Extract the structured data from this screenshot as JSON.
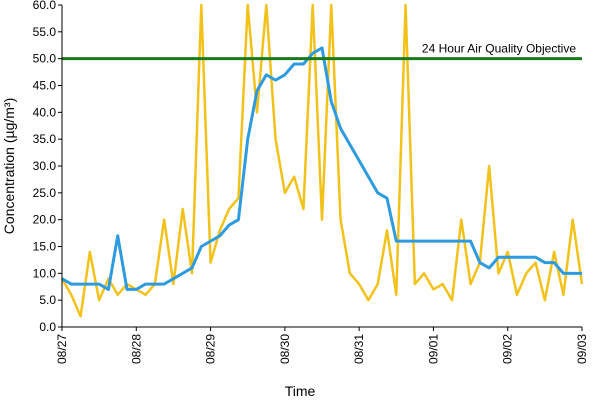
{
  "chart_data": {
    "type": "line",
    "y_label": "Concentration (µg/m³)",
    "x_label": "Time",
    "x": [
      0,
      0.125,
      0.25,
      0.375,
      0.5,
      0.625,
      0.75,
      0.875,
      1,
      1.125,
      1.25,
      1.375,
      1.5,
      1.625,
      1.75,
      1.875,
      2,
      2.125,
      2.25,
      2.375,
      2.5,
      2.625,
      2.75,
      2.875,
      3,
      3.125,
      3.25,
      3.375,
      3.5,
      3.625,
      3.75,
      3.875,
      4,
      4.125,
      4.25,
      4.375,
      4.5,
      4.625,
      4.75,
      4.875,
      5,
      5.125,
      5.25,
      5.375,
      5.5,
      5.625,
      5.75,
      5.875,
      6,
      6.125,
      6.25,
      6.375,
      6.5,
      6.625,
      6.75,
      6.875,
      7
    ],
    "series": [
      {
        "color": "#f2c21b",
        "values": [
          9,
          6,
          2,
          14,
          5,
          9,
          6,
          8,
          7,
          6,
          8,
          20,
          8,
          22,
          10,
          60,
          12,
          18,
          22,
          24,
          60,
          40,
          60,
          35,
          25,
          28,
          22,
          60,
          20,
          60,
          20,
          10,
          8,
          5,
          8,
          18,
          6,
          60,
          8,
          10,
          7,
          8,
          5,
          20,
          8,
          12,
          30,
          10,
          14,
          6,
          10,
          12,
          5,
          14,
          6,
          20,
          8
        ]
      },
      {
        "color": "#2e9be0",
        "values": [
          9,
          8,
          8,
          8,
          8,
          7,
          17,
          7,
          7,
          8,
          8,
          8,
          9,
          10,
          11,
          15,
          16,
          17,
          19,
          20,
          35,
          44,
          47,
          46,
          47,
          49,
          49,
          51,
          52,
          42,
          37,
          34,
          31,
          28,
          25,
          24,
          16,
          16,
          16,
          16,
          16,
          16,
          16,
          16,
          16,
          12,
          11,
          13,
          13,
          13,
          13,
          13,
          12,
          12,
          10,
          10,
          10
        ]
      }
    ],
    "objective": {
      "value": 50,
      "label": "24 Hour Air Quality Objective",
      "color": "#1a7a1a"
    },
    "xlim": [
      0,
      7
    ],
    "xticks": [
      {
        "value": 0,
        "label": "08/27"
      },
      {
        "value": 1,
        "label": "08/28"
      },
      {
        "value": 2,
        "label": "08/29"
      },
      {
        "value": 3,
        "label": "08/30"
      },
      {
        "value": 4,
        "label": "08/31"
      },
      {
        "value": 5,
        "label": "09/01"
      },
      {
        "value": 6,
        "label": "09/02"
      },
      {
        "value": 7,
        "label": "09/03"
      }
    ],
    "ylim": [
      0,
      60
    ],
    "yticks": [
      {
        "value": 0,
        "label": "0.0"
      },
      {
        "value": 5,
        "label": "5.0"
      },
      {
        "value": 10,
        "label": "10.0"
      },
      {
        "value": 15,
        "label": "15.0"
      },
      {
        "value": 20,
        "label": "20.0"
      },
      {
        "value": 25,
        "label": "25.0"
      },
      {
        "value": 30,
        "label": "30.0"
      },
      {
        "value": 35,
        "label": "35.0"
      },
      {
        "value": 40,
        "label": "40.0"
      },
      {
        "value": 45,
        "label": "45.0"
      },
      {
        "value": 50,
        "label": "50.0"
      },
      {
        "value": 55,
        "label": "55.0"
      },
      {
        "value": 60,
        "label": "60.0"
      }
    ]
  }
}
